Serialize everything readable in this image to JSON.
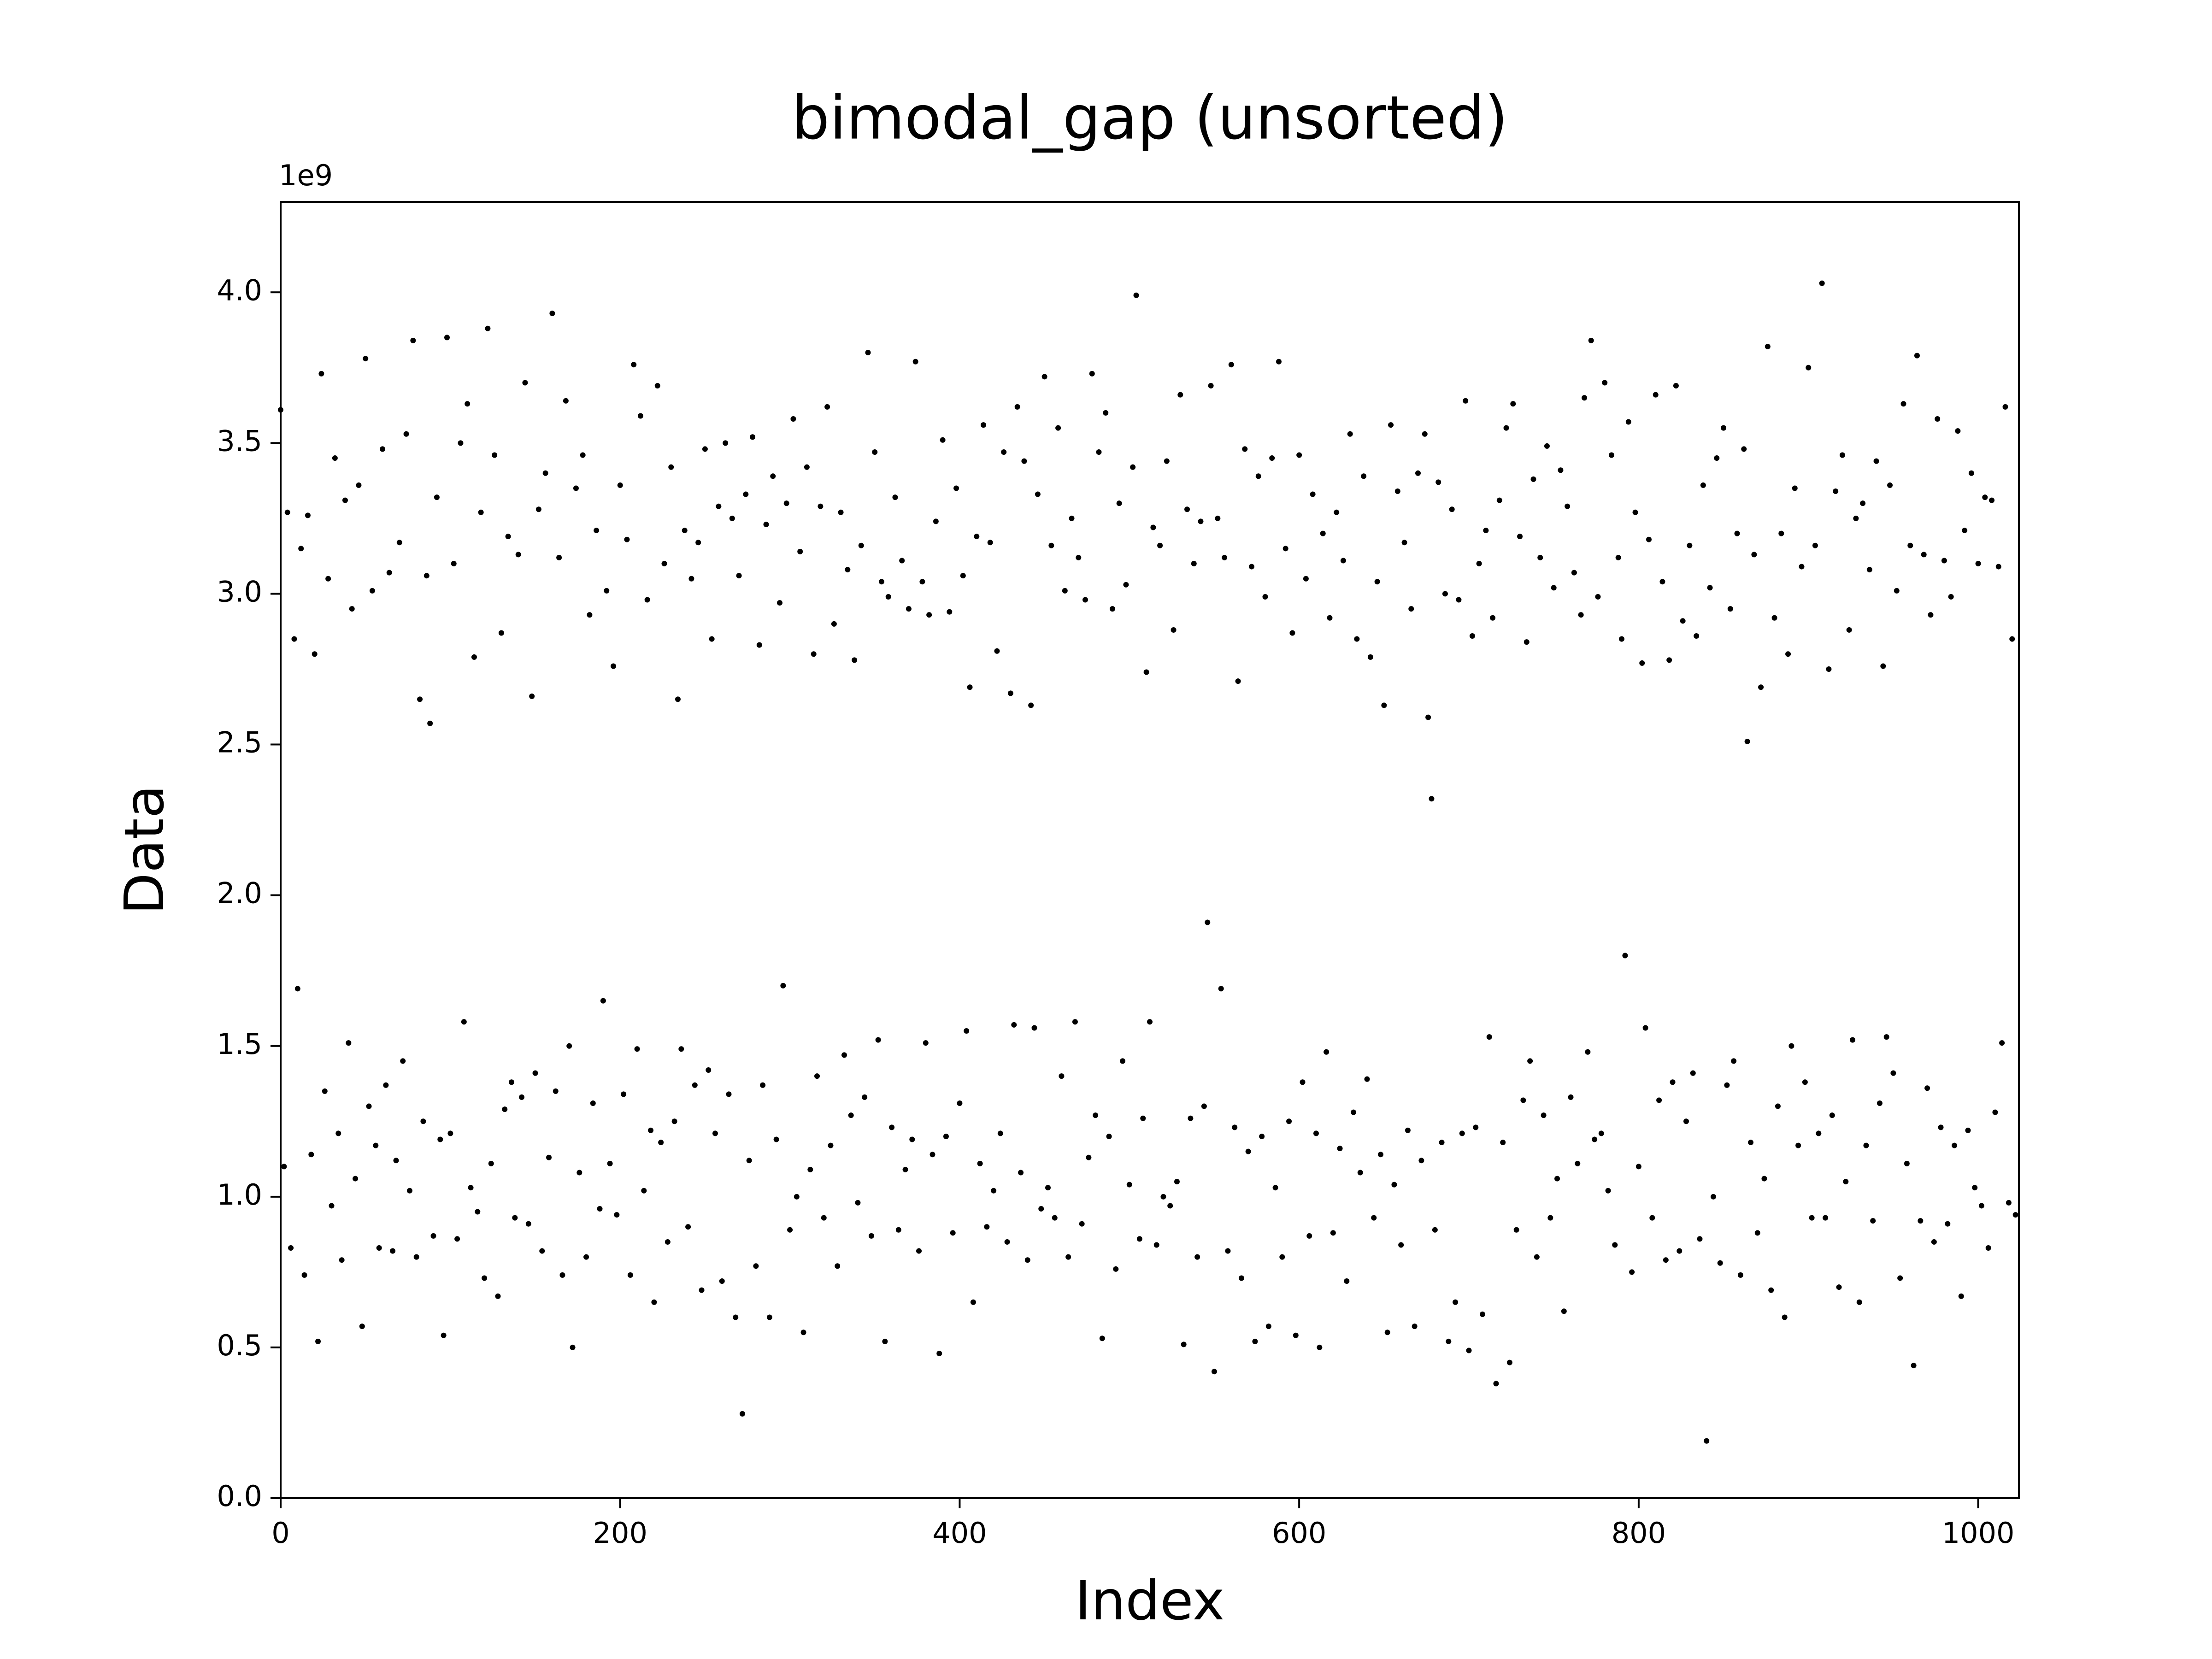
{
  "chart_data": {
    "type": "scatter",
    "title": "bimodal_gap (unsorted)",
    "x_label": "Index",
    "y_label": "Data",
    "y_offset": "1e9",
    "color": "#000000",
    "xlim": [
      0,
      1024
    ],
    "xticks": [
      0,
      200,
      400,
      600,
      800,
      1000
    ],
    "ylim": [
      0,
      4.3
    ],
    "yticks": [
      {
        "value": 0,
        "label": "0.0"
      },
      0.5,
      {
        "value": 1,
        "label": "1.0"
      },
      1.5,
      {
        "value": 2,
        "label": "2.0"
      },
      2.5,
      {
        "value": 3,
        "label": "3.0"
      },
      3.5,
      {
        "value": 4,
        "label": "4.0"
      }
    ],
    "x": [
      0,
      2,
      4,
      6,
      8,
      10,
      12,
      14,
      16,
      18,
      20,
      22,
      24,
      26,
      28,
      30,
      32,
      34,
      36,
      38,
      40,
      42,
      44,
      46,
      48,
      50,
      52,
      54,
      56,
      58,
      60,
      62,
      64,
      66,
      68,
      70,
      72,
      74,
      76,
      78,
      80,
      82,
      84,
      86,
      88,
      90,
      92,
      94,
      96,
      98,
      100,
      102,
      104,
      106,
      108,
      110,
      112,
      114,
      116,
      118,
      120,
      122,
      124,
      126,
      128,
      130,
      132,
      134,
      136,
      138,
      140,
      142,
      144,
      146,
      148,
      150,
      152,
      154,
      156,
      158,
      160,
      162,
      164,
      166,
      168,
      170,
      172,
      174,
      176,
      178,
      180,
      182,
      184,
      186,
      188,
      190,
      192,
      194,
      196,
      198,
      200,
      202,
      204,
      206,
      208,
      210,
      212,
      214,
      216,
      218,
      220,
      222,
      224,
      226,
      228,
      230,
      232,
      234,
      236,
      238,
      240,
      242,
      244,
      246,
      248,
      250,
      252,
      254,
      256,
      258,
      260,
      262,
      264,
      266,
      268,
      270,
      272,
      274,
      276,
      278,
      280,
      282,
      284,
      286,
      288,
      290,
      292,
      294,
      296,
      298,
      300,
      302,
      304,
      306,
      308,
      310,
      312,
      314,
      316,
      318,
      320,
      322,
      324,
      326,
      328,
      330,
      332,
      334,
      336,
      338,
      340,
      342,
      344,
      346,
      348,
      350,
      352,
      354,
      356,
      358,
      360,
      362,
      364,
      366,
      368,
      370,
      372,
      374,
      376,
      378,
      380,
      382,
      384,
      386,
      388,
      390,
      392,
      394,
      396,
      398,
      400,
      402,
      404,
      406,
      408,
      410,
      412,
      414,
      416,
      418,
      420,
      422,
      424,
      426,
      428,
      430,
      432,
      434,
      436,
      438,
      440,
      442,
      444,
      446,
      448,
      450,
      452,
      454,
      456,
      458,
      460,
      462,
      464,
      466,
      468,
      470,
      472,
      474,
      476,
      478,
      480,
      482,
      484,
      486,
      488,
      490,
      492,
      494,
      496,
      498,
      500,
      502,
      504,
      506,
      508,
      510,
      512,
      514,
      516,
      518,
      520,
      522,
      524,
      526,
      528,
      530,
      532,
      534,
      536,
      538,
      540,
      542,
      544,
      546,
      548,
      550,
      552,
      554,
      556,
      558,
      560,
      562,
      564,
      566,
      568,
      570,
      572,
      574,
      576,
      578,
      580,
      582,
      584,
      586,
      588,
      590,
      592,
      594,
      596,
      598,
      600,
      602,
      604,
      606,
      608,
      610,
      612,
      614,
      616,
      618,
      620,
      622,
      624,
      626,
      628,
      630,
      632,
      634,
      636,
      638,
      640,
      642,
      644,
      646,
      648,
      650,
      652,
      654,
      656,
      658,
      660,
      662,
      664,
      666,
      668,
      670,
      672,
      674,
      676,
      678,
      680,
      682,
      684,
      686,
      688,
      690,
      692,
      694,
      696,
      698,
      700,
      702,
      704,
      706,
      708,
      710,
      712,
      714,
      716,
      718,
      720,
      722,
      724,
      726,
      728,
      730,
      732,
      734,
      736,
      738,
      740,
      742,
      744,
      746,
      748,
      750,
      752,
      754,
      756,
      758,
      760,
      762,
      764,
      766,
      768,
      770,
      772,
      774,
      776,
      778,
      780,
      782,
      784,
      786,
      788,
      790,
      792,
      794,
      796,
      798,
      800,
      802,
      804,
      806,
      808,
      810,
      812,
      814,
      816,
      818,
      820,
      822,
      824,
      826,
      828,
      830,
      832,
      834,
      836,
      838,
      840,
      842,
      844,
      846,
      848,
      850,
      852,
      854,
      856,
      858,
      860,
      862,
      864,
      866,
      868,
      870,
      872,
      874,
      876,
      878,
      880,
      882,
      884,
      886,
      888,
      890,
      892,
      894,
      896,
      898,
      900,
      902,
      904,
      906,
      908,
      910,
      912,
      914,
      916,
      918,
      920,
      922,
      924,
      926,
      928,
      930,
      932,
      934,
      936,
      938,
      940,
      942,
      944,
      946,
      948,
      950,
      952,
      954,
      956,
      958,
      960,
      962,
      964,
      966,
      968,
      970,
      972,
      974,
      976,
      978,
      980,
      982,
      984,
      986,
      988,
      990,
      992,
      994,
      996,
      998,
      1000,
      1002,
      1004,
      1006,
      1008,
      1010,
      1012,
      1014,
      1016,
      1018,
      1020,
      1022
    ],
    "values": [
      3.61,
      1.1,
      3.27,
      0.83,
      2.85,
      1.69,
      3.15,
      0.74,
      3.26,
      1.14,
      2.8,
      0.52,
      3.73,
      1.35,
      3.05,
      0.97,
      3.45,
      1.21,
      0.79,
      3.31,
      1.51,
      2.95,
      1.06,
      3.36,
      0.57,
      3.78,
      1.3,
      3.01,
      1.17,
      0.83,
      3.48,
      1.37,
      3.07,
      0.82,
      1.12,
      3.17,
      1.45,
      3.53,
      1.02,
      3.84,
      0.8,
      2.65,
      1.25,
      3.06,
      2.57,
      0.87,
      3.32,
      1.19,
      0.54,
      3.85,
      1.21,
      3.1,
      0.86,
      3.5,
      1.58,
      3.63,
      1.03,
      2.79,
      0.95,
      3.27,
      0.73,
      3.88,
      1.11,
      3.46,
      0.67,
      2.87,
      1.29,
      3.19,
      1.38,
      0.93,
      3.13,
      1.33,
      3.7,
      0.91,
      2.66,
      1.41,
      3.28,
      0.82,
      3.4,
      1.13,
      3.93,
      1.35,
      3.12,
      0.74,
      3.64,
      1.5,
      0.5,
      3.35,
      1.08,
      3.46,
      0.8,
      2.93,
      1.31,
      3.21,
      0.96,
      1.65,
      3.01,
      1.11,
      2.76,
      0.94,
      3.36,
      1.34,
      3.18,
      0.74,
      3.76,
      1.49,
      3.59,
      1.02,
      2.98,
      1.22,
      0.65,
      3.69,
      1.18,
      3.1,
      0.85,
      3.42,
      1.25,
      2.65,
      1.49,
      3.21,
      0.9,
      3.05,
      1.37,
      3.17,
      0.69,
      3.48,
      1.42,
      2.85,
      1.21,
      3.29,
      0.72,
      3.5,
      1.34,
      3.25,
      0.6,
      3.06,
      0.28,
      3.33,
      1.12,
      3.52,
      0.77,
      2.83,
      1.37,
      3.23,
      0.6,
      3.39,
      1.19,
      2.97,
      1.7,
      3.3,
      0.89,
      3.58,
      1.0,
      3.14,
      0.55,
      3.42,
      1.09,
      2.8,
      1.4,
      3.29,
      0.93,
      3.62,
      1.17,
      2.9,
      0.77,
      3.27,
      1.47,
      3.08,
      1.27,
      2.78,
      0.98,
      3.16,
      1.33,
      3.8,
      0.87,
      3.47,
      1.52,
      3.04,
      0.52,
      2.99,
      1.23,
      3.32,
      0.89,
      3.11,
      1.09,
      2.95,
      1.19,
      3.77,
      0.82,
      3.04,
      1.51,
      2.93,
      1.14,
      3.24,
      0.48,
      3.51,
      1.2,
      2.94,
      0.88,
      3.35,
      1.31,
      3.06,
      1.55,
      2.69,
      0.65,
      3.19,
      1.11,
      3.56,
      0.9,
      3.17,
      1.02,
      2.81,
      1.21,
      3.47,
      0.85,
      2.67,
      1.57,
      3.62,
      1.08,
      3.44,
      0.79,
      2.63,
      1.56,
      3.33,
      0.96,
      3.72,
      1.03,
      3.16,
      0.93,
      3.55,
      1.4,
      3.01,
      0.8,
      3.25,
      1.58,
      3.12,
      0.91,
      2.98,
      1.13,
      3.73,
      1.27,
      3.47,
      0.53,
      3.6,
      1.2,
      2.95,
      0.76,
      3.3,
      1.45,
      3.03,
      1.04,
      3.42,
      3.99,
      0.86,
      1.26,
      2.74,
      1.58,
      3.22,
      0.84,
      3.16,
      1.0,
      3.44,
      0.97,
      2.88,
      1.05,
      3.66,
      0.51,
      3.28,
      1.26,
      3.1,
      0.8,
      3.24,
      1.3,
      1.91,
      3.69,
      0.42,
      3.25,
      1.69,
      3.12,
      0.82,
      3.76,
      1.23,
      2.71,
      0.73,
      3.48,
      1.15,
      3.09,
      0.52,
      3.39,
      1.2,
      2.99,
      0.57,
      3.45,
      1.03,
      3.77,
      0.8,
      3.15,
      1.25,
      2.87,
      0.54,
      3.46,
      1.38,
      3.05,
      0.87,
      3.33,
      1.21,
      0.5,
      3.2,
      1.48,
      2.92,
      0.88,
      3.27,
      1.16,
      3.11,
      0.72,
      3.53,
      1.28,
      2.85,
      1.08,
      3.39,
      1.39,
      2.79,
      0.93,
      3.04,
      1.14,
      2.63,
      0.55,
      3.56,
      1.04,
      3.34,
      0.84,
      3.17,
      1.22,
      2.95,
      0.57,
      3.4,
      1.12,
      3.53,
      2.59,
      2.32,
      0.89,
      3.37,
      1.18,
      3.0,
      0.52,
      3.28,
      0.65,
      2.98,
      1.21,
      3.64,
      0.49,
      2.86,
      1.23,
      3.1,
      0.61,
      3.21,
      1.53,
      2.92,
      0.38,
      3.31,
      1.18,
      3.55,
      0.45,
      3.63,
      0.89,
      3.19,
      1.32,
      2.84,
      1.45,
      3.38,
      0.8,
      3.12,
      1.27,
      3.49,
      0.93,
      3.02,
      1.06,
      3.41,
      0.62,
      3.29,
      1.33,
      3.07,
      1.11,
      2.93,
      3.65,
      1.48,
      3.84,
      1.19,
      2.99,
      1.21,
      3.7,
      1.02,
      3.46,
      0.84,
      3.12,
      2.85,
      1.8,
      3.57,
      0.75,
      3.27,
      1.1,
      2.77,
      1.56,
      3.18,
      0.93,
      3.66,
      1.32,
      3.04,
      0.79,
      2.78,
      1.38,
      3.69,
      0.82,
      2.91,
      1.25,
      3.16,
      1.41,
      2.86,
      0.86,
      3.36,
      0.19,
      3.02,
      1.0,
      3.45,
      0.78,
      3.55,
      1.37,
      2.95,
      1.45,
      3.2,
      0.74,
      3.48,
      2.51,
      1.18,
      3.13,
      0.88,
      2.69,
      1.06,
      3.82,
      0.69,
      2.92,
      1.3,
      3.2,
      0.6,
      2.8,
      1.5,
      3.35,
      1.17,
      3.09,
      1.38,
      3.75,
      0.93,
      3.16,
      1.21,
      4.03,
      0.93,
      2.75,
      1.27,
      3.34,
      0.7,
      3.46,
      1.05,
      2.88,
      1.52,
      3.25,
      0.65,
      3.3,
      1.17,
      3.08,
      0.92,
      3.44,
      1.31,
      2.76,
      1.53,
      3.36,
      1.41,
      3.01,
      0.73,
      3.63,
      1.11,
      3.16,
      0.44,
      3.79,
      0.92,
      3.13,
      1.36,
      2.93,
      0.85,
      3.58,
      1.23,
      3.11,
      0.91,
      2.99,
      1.17,
      3.54,
      0.67,
      3.21,
      1.22,
      3.4,
      1.03,
      3.1,
      0.97,
      3.32,
      0.83,
      3.31,
      1.28,
      3.09,
      1.51,
      3.62,
      0.98,
      2.85,
      0.94
    ]
  }
}
